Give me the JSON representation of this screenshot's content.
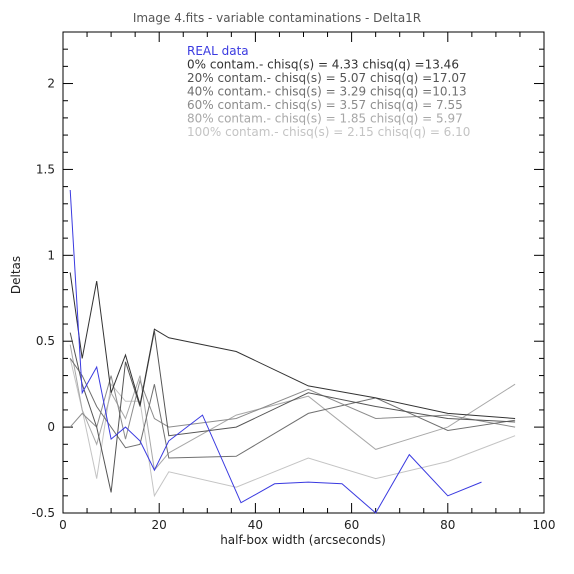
{
  "chart_data": {
    "type": "line",
    "title": "Image 4.fits  -  variable contaminations  -  Delta1R",
    "xlabel": "half-box width (arcseconds)",
    "ylabel": "Deltas",
    "xlim": [
      0,
      100
    ],
    "ylim": [
      -0.5,
      2.3
    ],
    "xticks": [
      0,
      20,
      40,
      60,
      80,
      100
    ],
    "yticks": [
      -0.5,
      0,
      0.5,
      1,
      1.5,
      2
    ],
    "grid": false,
    "legend_position": "top-center",
    "legend": [
      "REAL data",
      "0% contam.- chisq(s) = 4.33 chisq(q) =13.46",
      "20% contam.- chisq(s) = 5.07 chisq(q) =17.07",
      "40% contam.- chisq(s) = 3.29 chisq(q) =10.13",
      "60% contam.- chisq(s) = 3.57 chisq(q) = 7.55",
      "80% contam.- chisq(s) = 1.85 chisq(q) = 5.97",
      "100% contam.- chisq(s) = 2.15 chisq(q) = 6.10"
    ],
    "series": [
      {
        "name": "REAL data",
        "color": "#3a3ae0",
        "x": [
          1.5,
          4,
          7,
          10,
          13,
          16,
          19,
          22,
          29,
          37,
          44,
          51,
          58,
          65,
          72,
          80,
          87
        ],
        "y": [
          1.38,
          0.2,
          0.35,
          -0.07,
          0.0,
          -0.08,
          -0.25,
          -0.08,
          0.07,
          -0.44,
          -0.33,
          -0.32,
          -0.33,
          -0.5,
          -0.16,
          -0.4,
          -0.32
        ]
      },
      {
        "name": "0% contam.",
        "color": "#333333",
        "x": [
          1.5,
          4,
          7,
          10,
          13,
          16,
          19,
          22,
          36,
          51,
          65,
          80,
          94
        ],
        "y": [
          0.9,
          0.4,
          0.85,
          0.2,
          0.42,
          0.13,
          0.57,
          0.52,
          0.44,
          0.24,
          0.17,
          0.08,
          0.05
        ]
      },
      {
        "name": "20% contam.",
        "color": "#555555",
        "x": [
          1.5,
          4,
          7,
          10,
          13,
          16,
          19,
          22,
          36,
          51,
          65,
          80,
          94
        ],
        "y": [
          0.55,
          0.25,
          0.0,
          -0.38,
          0.38,
          0.12,
          0.56,
          -0.05,
          0.0,
          0.2,
          0.12,
          0.05,
          0.03
        ]
      },
      {
        "name": "40% contam.",
        "color": "#707070",
        "x": [
          1.5,
          4,
          7,
          10,
          13,
          16,
          19,
          22,
          36,
          51,
          65,
          80,
          94
        ],
        "y": [
          0.4,
          0.3,
          0.12,
          0.0,
          -0.12,
          -0.1,
          0.25,
          -0.18,
          -0.17,
          0.08,
          0.17,
          -0.02,
          0.04
        ]
      },
      {
        "name": "60% contam.",
        "color": "#8c8c8c",
        "x": [
          1.5,
          4,
          7,
          10,
          13,
          16,
          19,
          22,
          36,
          51,
          65,
          80,
          94
        ],
        "y": [
          0.0,
          0.08,
          0.0,
          0.3,
          -0.07,
          0.27,
          0.05,
          0.0,
          0.05,
          0.22,
          0.05,
          0.07,
          0.0
        ]
      },
      {
        "name": "80% contam.",
        "color": "#a8a8a8",
        "x": [
          1.5,
          4,
          7,
          10,
          13,
          16,
          19,
          22,
          36,
          51,
          65,
          80,
          94
        ],
        "y": [
          0.48,
          0.1,
          -0.1,
          0.2,
          0.05,
          0.3,
          -0.25,
          -0.15,
          0.07,
          0.18,
          -0.13,
          0.0,
          0.25
        ]
      },
      {
        "name": "100% contam.",
        "color": "#c4c4c4",
        "x": [
          1.5,
          4,
          7,
          10,
          13,
          16,
          19,
          22,
          36,
          51,
          65,
          80,
          94
        ],
        "y": [
          0.4,
          0.1,
          -0.3,
          0.25,
          0.15,
          0.15,
          -0.4,
          -0.26,
          -0.35,
          -0.18,
          -0.3,
          -0.2,
          -0.05
        ]
      }
    ]
  }
}
